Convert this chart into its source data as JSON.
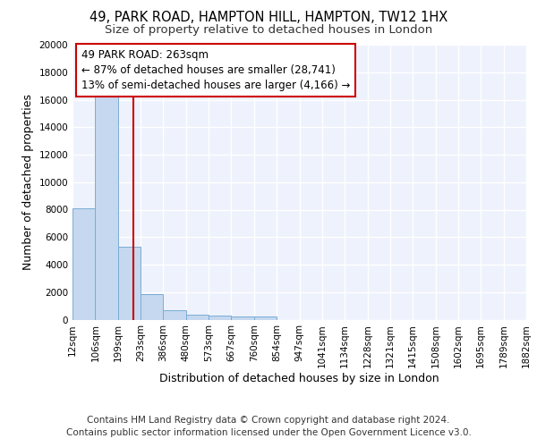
{
  "title_line1": "49, PARK ROAD, HAMPTON HILL, HAMPTON, TW12 1HX",
  "title_line2": "Size of property relative to detached houses in London",
  "xlabel": "Distribution of detached houses by size in London",
  "ylabel": "Number of detached properties",
  "bar_color": "#c5d8ef",
  "bar_edge_color": "#7aadd4",
  "bar_heights": [
    8100,
    16500,
    5300,
    1850,
    700,
    350,
    280,
    230,
    200,
    0,
    0,
    0,
    0,
    0,
    0,
    0,
    0,
    0,
    0,
    0
  ],
  "x_labels": [
    "12sqm",
    "106sqm",
    "199sqm",
    "293sqm",
    "386sqm",
    "480sqm",
    "573sqm",
    "667sqm",
    "760sqm",
    "854sqm",
    "947sqm",
    "1041sqm",
    "1134sqm",
    "1228sqm",
    "1321sqm",
    "1415sqm",
    "1508sqm",
    "1602sqm",
    "1695sqm",
    "1789sqm",
    "1882sqm"
  ],
  "n_bins": 20,
  "annotation_text": "49 PARK ROAD: 263sqm\n← 87% of detached houses are smaller (28,741)\n13% of semi-detached houses are larger (4,166) →",
  "annotation_box_color": "#ffffff",
  "annotation_box_edge_color": "#cc0000",
  "vline_color": "#cc0000",
  "ylim": [
    0,
    20000
  ],
  "yticks": [
    0,
    2000,
    4000,
    6000,
    8000,
    10000,
    12000,
    14000,
    16000,
    18000,
    20000
  ],
  "footer_line1": "Contains HM Land Registry data © Crown copyright and database right 2024.",
  "footer_line2": "Contains public sector information licensed under the Open Government Licence v3.0.",
  "background_color": "#eef2fc",
  "grid_color": "#ffffff",
  "title_fontsize": 10.5,
  "subtitle_fontsize": 9.5,
  "axis_label_fontsize": 9,
  "tick_fontsize": 7.5,
  "footer_fontsize": 7.5,
  "annotation_fontsize": 8.5
}
